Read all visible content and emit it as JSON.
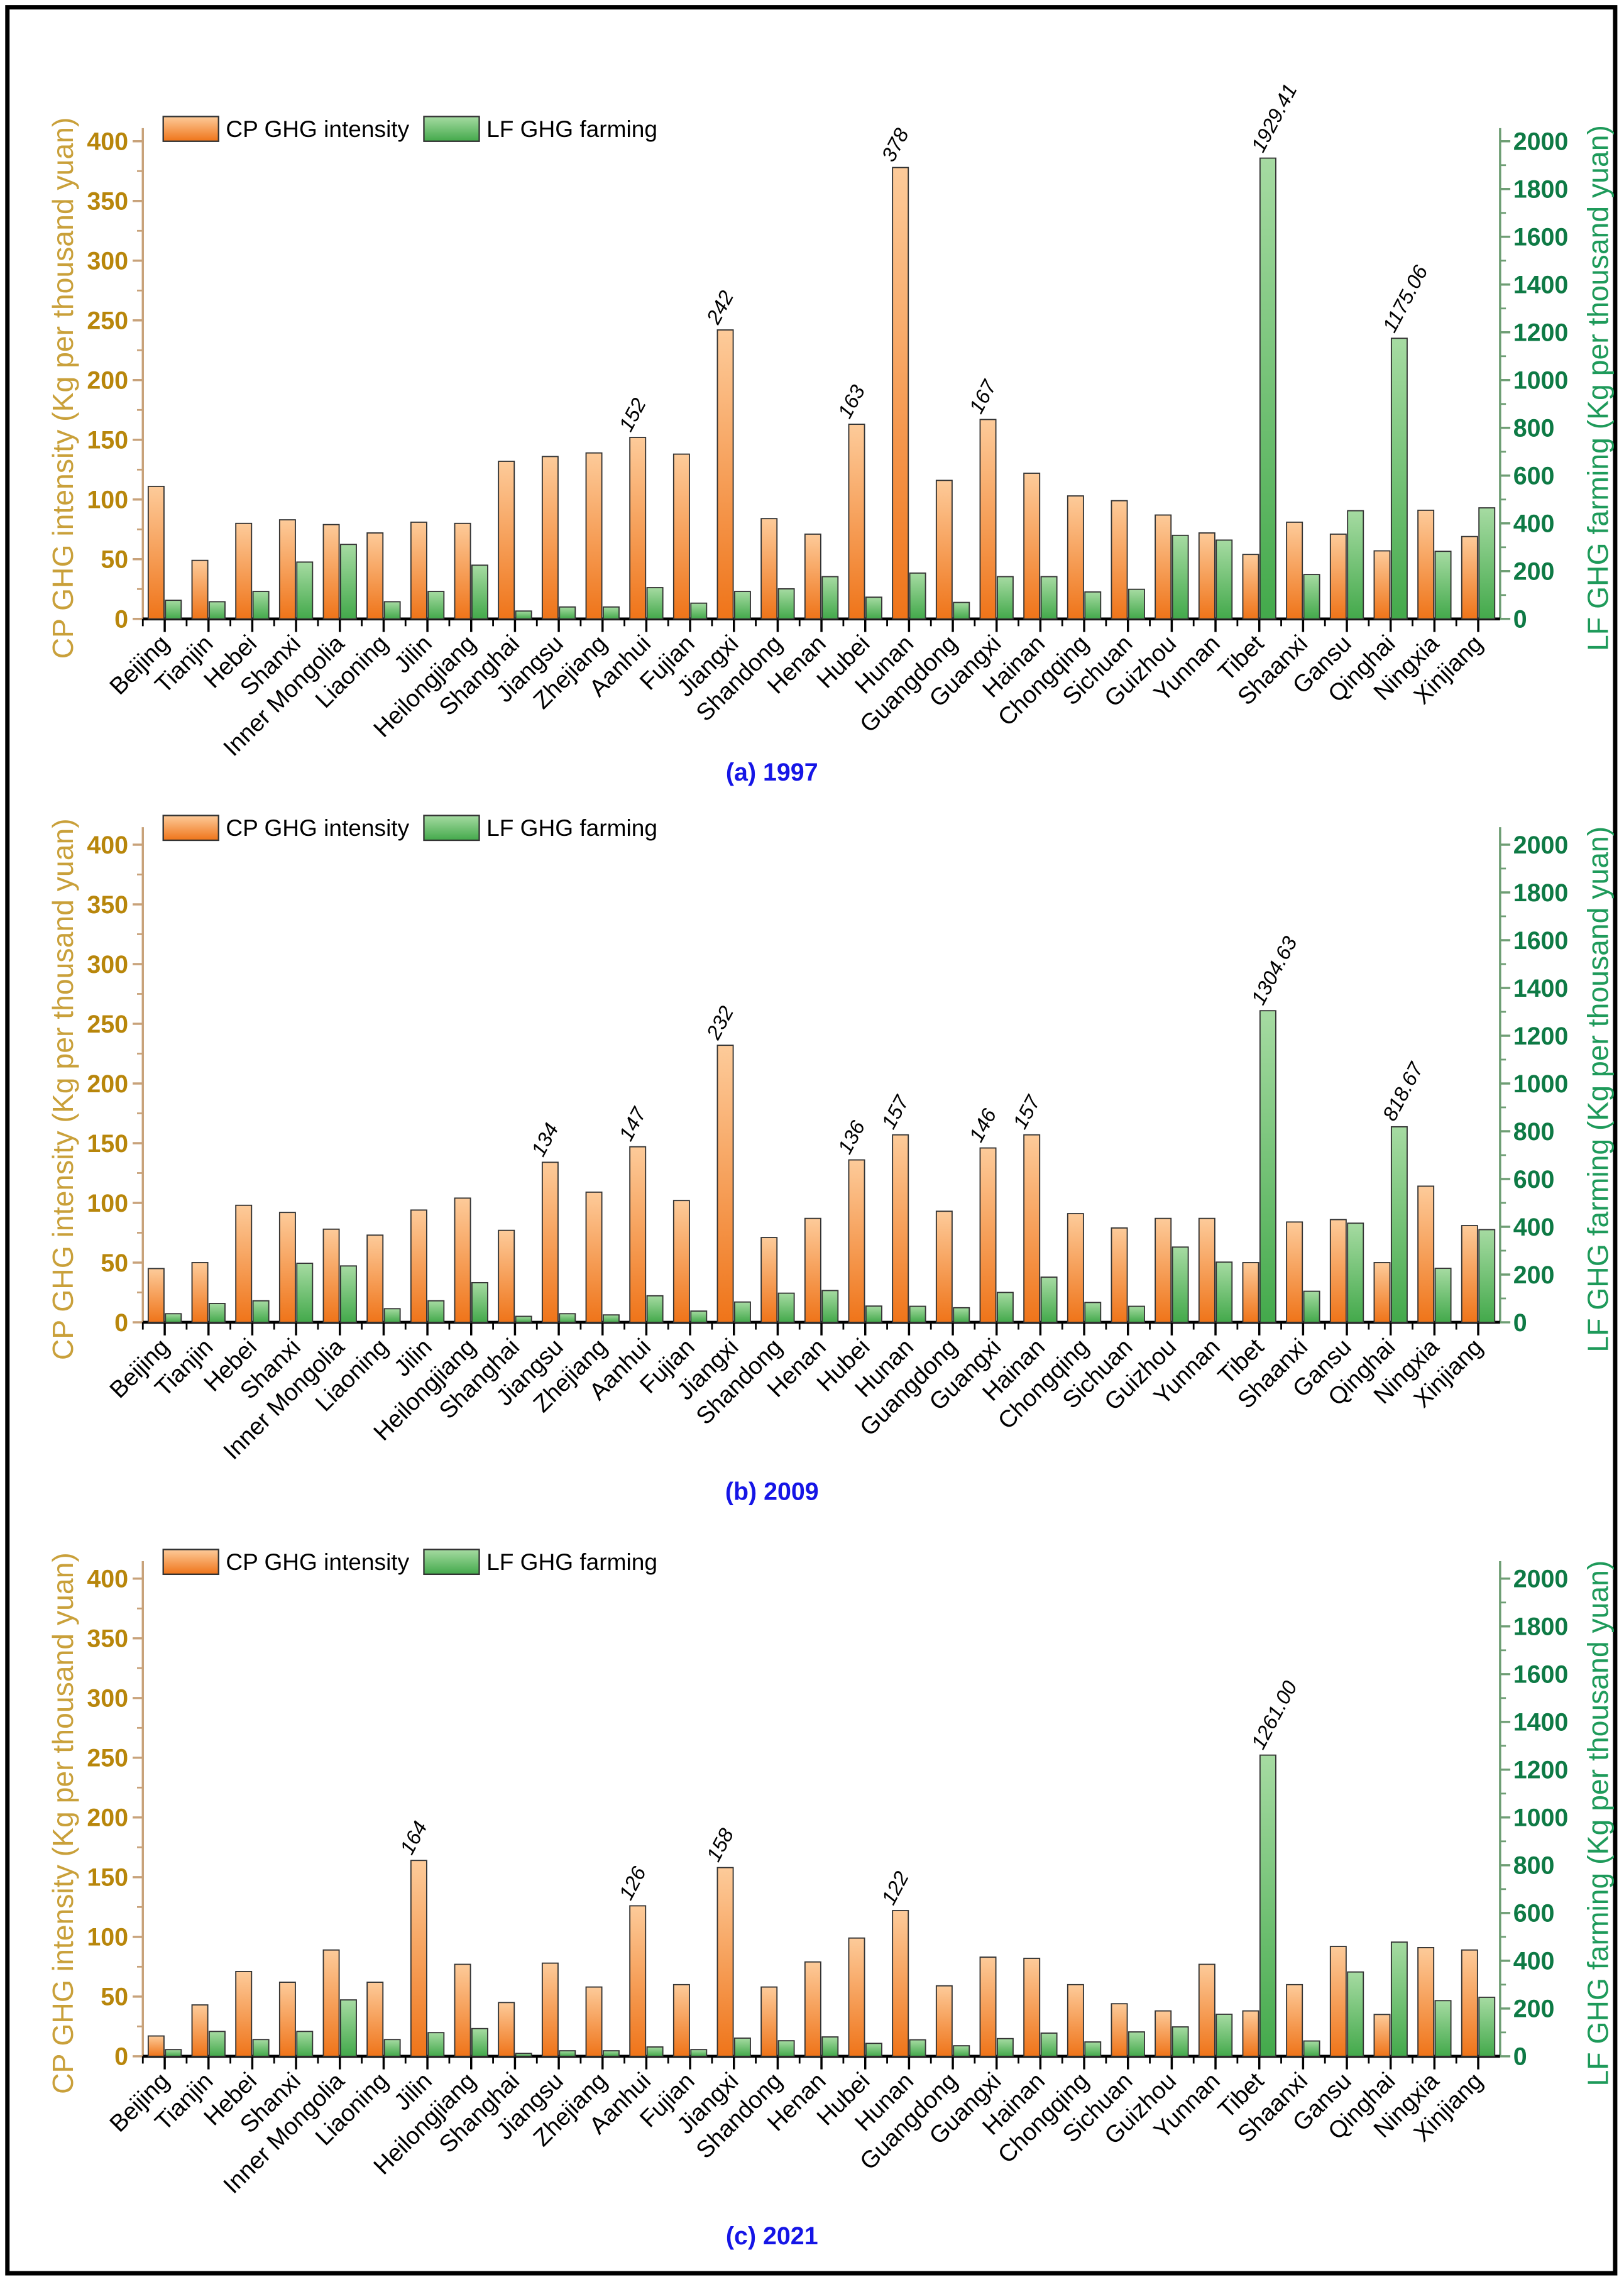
{
  "chart_data": [
    {
      "type": "bar",
      "title": "(a) 1997",
      "ylabel": "CP GHG intensity (Kg per thousand yuan)",
      "y2label": "LF GHG farming (Kg per thousand yuan)",
      "ylim": [
        0,
        400
      ],
      "y2lim": [
        0,
        2000
      ],
      "yticks": [
        "0",
        "50",
        "100",
        "150",
        "200",
        "250",
        "300",
        "350",
        "400"
      ],
      "y2ticks": [
        "0",
        "200",
        "400",
        "600",
        "800",
        "1000",
        "1200",
        "1400",
        "1600",
        "1800",
        "2000"
      ],
      "legend": [
        "CP GHG intensity",
        "LF GHG farming"
      ],
      "legend_position": "top-left",
      "categories": [
        "Beijing",
        "Tianjin",
        "Hebei",
        "Shanxi",
        "Inner Mongolia",
        "Liaoning",
        "Jilin",
        "Heilongjiang",
        "Shanghai",
        "Jiangsu",
        "Zhejiang",
        "Aanhui",
        "Fujian",
        "Jiangxi",
        "Shandong",
        "Henan",
        "Hubei",
        "Hunan",
        "Guangdong",
        "Guangxi",
        "Hainan",
        "Chongqing",
        "Sichuan",
        "Guizhou",
        "Yunnan",
        "Tibet",
        "Shaanxi",
        "Gansu",
        "Qinghai",
        "Ningxia",
        "Xinjiang"
      ],
      "series": [
        {
          "name": "CP GHG intensity",
          "axis": "left",
          "values": [
            111,
            49,
            80,
            83,
            79,
            72,
            81,
            80,
            132,
            136,
            139,
            152,
            138,
            242,
            84,
            71,
            163,
            378,
            116,
            167,
            122,
            103,
            99,
            87,
            72,
            54,
            81,
            71,
            57,
            91,
            69
          ]
        },
        {
          "name": "LF GHG farming",
          "axis": "right",
          "values": [
            78,
            72,
            115,
            238,
            312,
            72,
            115,
            225,
            33,
            50,
            50,
            131,
            66,
            115,
            126,
            177,
            91,
            192,
            69,
            177,
            177,
            113,
            124,
            350,
            330,
            1929.41,
            186,
            453,
            1175.06,
            283,
            465
          ]
        }
      ],
      "annotations": [
        {
          "series": 0,
          "index": 11,
          "text": "152"
        },
        {
          "series": 0,
          "index": 13,
          "text": "242"
        },
        {
          "series": 0,
          "index": 16,
          "text": "163"
        },
        {
          "series": 0,
          "index": 17,
          "text": "378"
        },
        {
          "series": 0,
          "index": 19,
          "text": "167"
        },
        {
          "series": 1,
          "index": 25,
          "text": "1929.41"
        },
        {
          "series": 1,
          "index": 28,
          "text": "1175.06"
        }
      ]
    },
    {
      "type": "bar",
      "title": "(b) 2009",
      "ylabel": "CP GHG intensity (Kg per thousand yuan)",
      "y2label": "LF GHG farming (Kg per thousand yuan)",
      "ylim": [
        0,
        400
      ],
      "y2lim": [
        0,
        2000
      ],
      "yticks": [
        "0",
        "50",
        "100",
        "150",
        "200",
        "250",
        "300",
        "350",
        "400"
      ],
      "y2ticks": [
        "0",
        "200",
        "400",
        "600",
        "800",
        "1000",
        "1200",
        "1400",
        "1600",
        "1800",
        "2000"
      ],
      "legend": [
        "CP GHG intensity",
        "LF GHG farming"
      ],
      "legend_position": "top-left",
      "categories": [
        "Beijing",
        "Tianjin",
        "Hebei",
        "Shanxi",
        "Inner Mongolia",
        "Liaoning",
        "Jilin",
        "Heilongjiang",
        "Shanghai",
        "Jiangsu",
        "Zhejiang",
        "Aanhui",
        "Fujian",
        "Jiangxi",
        "Shandong",
        "Henan",
        "Hubei",
        "Hunan",
        "Guangdong",
        "Guangxi",
        "Hainan",
        "Chongqing",
        "Sichuan",
        "Guizhou",
        "Yunnan",
        "Tibet",
        "Shaanxi",
        "Gansu",
        "Qinghai",
        "Ningxia",
        "Xinjiang"
      ],
      "series": [
        {
          "name": "CP GHG intensity",
          "axis": "left",
          "values": [
            45,
            50,
            98,
            92,
            78,
            73,
            94,
            104,
            77,
            134,
            109,
            147,
            102,
            232,
            71,
            87,
            136,
            157,
            93,
            146,
            157,
            91,
            79,
            87,
            87,
            50,
            84,
            86,
            50,
            114,
            81
          ]
        },
        {
          "name": "LF GHG farming",
          "axis": "right",
          "values": [
            36,
            79,
            90,
            247,
            236,
            57,
            90,
            166,
            25,
            36,
            31,
            111,
            47,
            85,
            122,
            133,
            68,
            67,
            61,
            125,
            189,
            83,
            67,
            315,
            252,
            1304.63,
            130,
            415,
            818.67,
            226,
            388
          ]
        }
      ],
      "annotations": [
        {
          "series": 0,
          "index": 9,
          "text": "134"
        },
        {
          "series": 0,
          "index": 11,
          "text": "147"
        },
        {
          "series": 0,
          "index": 13,
          "text": "232"
        },
        {
          "series": 0,
          "index": 16,
          "text": "136"
        },
        {
          "series": 0,
          "index": 17,
          "text": "157"
        },
        {
          "series": 0,
          "index": 19,
          "text": "146"
        },
        {
          "series": 0,
          "index": 20,
          "text": "157"
        },
        {
          "series": 1,
          "index": 25,
          "text": "1304.63"
        },
        {
          "series": 1,
          "index": 28,
          "text": "818.67"
        }
      ]
    },
    {
      "type": "bar",
      "title": "(c) 2021",
      "ylabel": "CP GHG intensity (Kg per thousand yuan)",
      "y2label": "LF GHG farming (Kg per thousand yuan)",
      "ylim": [
        0,
        400
      ],
      "y2lim": [
        0,
        2000
      ],
      "yticks": [
        "0",
        "50",
        "100",
        "150",
        "200",
        "250",
        "300",
        "350",
        "400"
      ],
      "y2ticks": [
        "0",
        "200",
        "400",
        "600",
        "800",
        "1000",
        "1200",
        "1400",
        "1600",
        "1800",
        "2000"
      ],
      "legend": [
        "CP GHG intensity",
        "LF GHG farming"
      ],
      "legend_position": "top-left",
      "categories": [
        "Beijing",
        "Tianjin",
        "Hebei",
        "Shanxi",
        "Inner Mongolia",
        "Liaoning",
        "Jilin",
        "Heilongjiang",
        "Shanghai",
        "Jiangsu",
        "Zhejiang",
        "Aanhui",
        "Fujian",
        "Jiangxi",
        "Shandong",
        "Henan",
        "Hubei",
        "Hunan",
        "Guangdong",
        "Guangxi",
        "Hainan",
        "Chongqing",
        "Sichuan",
        "Guizhou",
        "Yunnan",
        "Tibet",
        "Shaanxi",
        "Gansu",
        "Qinghai",
        "Ningxia",
        "Xinjiang"
      ],
      "series": [
        {
          "name": "CP GHG intensity",
          "axis": "left",
          "values": [
            17,
            43,
            71,
            62,
            89,
            62,
            164,
            77,
            45,
            78,
            58,
            126,
            60,
            158,
            58,
            79,
            99,
            122,
            59,
            83,
            82,
            60,
            44,
            38,
            77,
            38,
            60,
            92,
            35,
            91,
            89
          ]
        },
        {
          "name": "LF GHG farming",
          "axis": "right",
          "values": [
            28,
            104,
            70,
            104,
            236,
            70,
            99,
            116,
            12,
            23,
            23,
            39,
            28,
            76,
            65,
            81,
            54,
            69,
            44,
            74,
            97,
            60,
            102,
            123,
            176,
            1261.0,
            64,
            353,
            478,
            233,
            247
          ]
        }
      ],
      "annotations": [
        {
          "series": 0,
          "index": 6,
          "text": "164"
        },
        {
          "series": 0,
          "index": 11,
          "text": "126"
        },
        {
          "series": 0,
          "index": 13,
          "text": "158"
        },
        {
          "series": 0,
          "index": 17,
          "text": "122"
        },
        {
          "series": 1,
          "index": 25,
          "text": "1261.00"
        }
      ]
    }
  ],
  "colors": {
    "cp_top": "#FDCB9A",
    "cp_bottom": "#EF7419",
    "lf_top": "#A6DBA2",
    "lf_bottom": "#43A94B",
    "caption": "#1515E6"
  }
}
